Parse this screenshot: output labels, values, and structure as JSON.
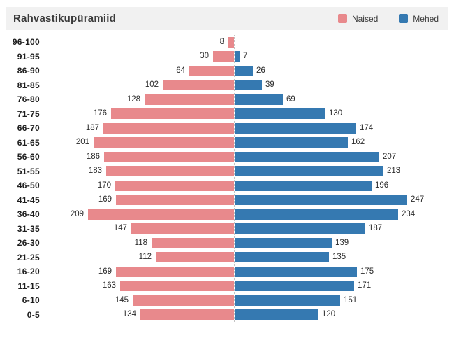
{
  "header": {
    "title": "Rahvastikupüramiid",
    "legend": [
      {
        "label": "Naised",
        "color": "#e8898c"
      },
      {
        "label": "Mehed",
        "color": "#3579b1"
      }
    ]
  },
  "chart_data": {
    "type": "bar",
    "variant": "population-pyramid",
    "title": "Rahvastikupüramiid",
    "xlabel": "",
    "ylabel": "",
    "axis_lines": "none",
    "grid": false,
    "center_line": "dotted",
    "value_labels": "outside-bar-ends",
    "legend_position": "top-right",
    "categories": [
      "96-100",
      "91-95",
      "86-90",
      "81-85",
      "76-80",
      "71-75",
      "66-70",
      "61-65",
      "56-60",
      "51-55",
      "46-50",
      "41-45",
      "36-40",
      "31-35",
      "26-30",
      "21-25",
      "16-20",
      "11-15",
      "6-10",
      "0-5"
    ],
    "series": [
      {
        "name": "Naised",
        "side": "left",
        "color": "#e8898c",
        "values": [
          8,
          30,
          64,
          102,
          128,
          176,
          187,
          201,
          186,
          183,
          170,
          169,
          209,
          147,
          118,
          112,
          169,
          163,
          145,
          134
        ]
      },
      {
        "name": "Mehed",
        "side": "right",
        "color": "#3579b1",
        "values": [
          0,
          7,
          26,
          39,
          69,
          130,
          174,
          162,
          207,
          213,
          196,
          247,
          234,
          187,
          139,
          135,
          175,
          171,
          151,
          120
        ]
      }
    ],
    "xlim_left": [
      270,
      0
    ],
    "xlim_right": [
      0,
      315
    ]
  }
}
